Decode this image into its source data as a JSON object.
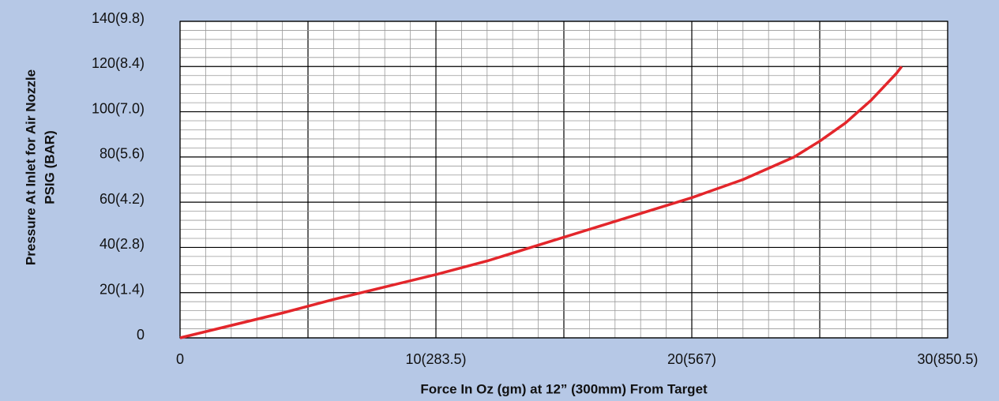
{
  "chart_data": {
    "type": "line",
    "xlabel": "Force In Oz (gm) at 12” (300mm) From Target",
    "ylabel": [
      "Pressure At Inlet for Air Nozzle",
      "PSIG (BAR)"
    ],
    "x": [
      0,
      2,
      4,
      6,
      8,
      10,
      12,
      14,
      16,
      18,
      20,
      22,
      24,
      25,
      26,
      26.5,
      27,
      27.5,
      28,
      28.2
    ],
    "series": [
      {
        "name": "Pressure",
        "color": "#e3262b",
        "values": [
          0,
          5.5,
          11,
          17,
          22.5,
          28,
          34,
          41,
          48,
          55,
          62,
          70,
          80,
          87,
          95,
          100,
          105,
          111,
          117,
          120
        ]
      }
    ],
    "xlim": [
      0,
      30
    ],
    "xticks": [
      0,
      {
        "value": 10,
        "label": "10(283.5)"
      },
      {
        "value": 20,
        "label": "20(567)"
      },
      {
        "value": 30,
        "label": "30(850.5)"
      }
    ],
    "ylim": [
      0,
      140
    ],
    "yticks": [
      0,
      {
        "value": 20,
        "label": "20(1.4)"
      },
      {
        "value": 40,
        "label": "40(2.8)"
      },
      {
        "value": 60,
        "label": "60(4.2)"
      },
      {
        "value": 80,
        "label": "80(5.6)"
      },
      {
        "value": 100,
        "label": "100(7.0)"
      },
      {
        "value": 120,
        "label": "120(8.4)"
      },
      {
        "value": 140,
        "label": "140(9.8)"
      }
    ],
    "grid": true
  }
}
